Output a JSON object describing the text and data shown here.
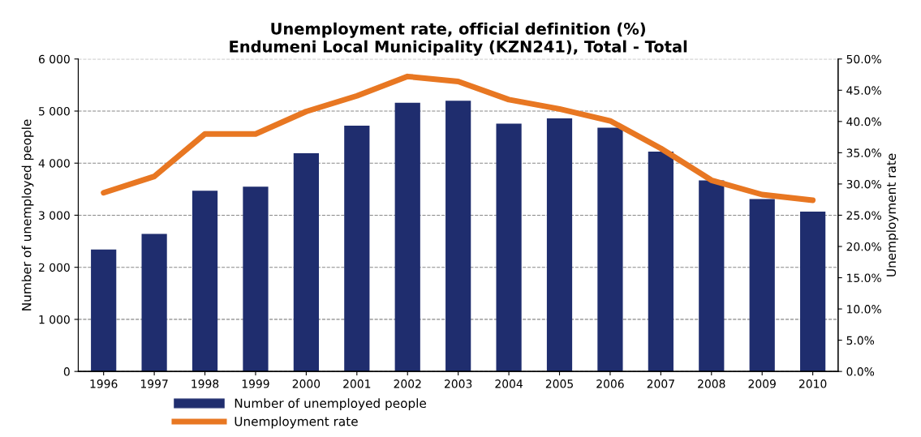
{
  "chart_data": {
    "type": "bar",
    "title": "Unemployment rate, official definition (%)\nEndumeni Local Municipality (KZN241), Total - Total",
    "categories": [
      "1996",
      "1997",
      "1998",
      "1999",
      "2000",
      "2001",
      "2002",
      "2003",
      "2004",
      "2005",
      "2006",
      "2007",
      "2008",
      "2009",
      "2010"
    ],
    "series": [
      {
        "name": "Number of unemployed people",
        "color": "#1f2d6e",
        "values": [
          2340,
          2640,
          3470,
          3550,
          4190,
          4720,
          5160,
          5200,
          4760,
          4860,
          4680,
          4220,
          3670,
          3310,
          3070
        ]
      },
      {
        "name": "Unemployment rate",
        "color": "#e87722",
        "type": "line",
        "axis": "y2",
        "values": [
          28.6,
          31.2,
          38.0,
          38.0,
          41.6,
          44.1,
          47.2,
          46.4,
          43.5,
          42.0,
          40.1,
          35.7,
          30.6,
          28.3,
          27.4
        ]
      }
    ],
    "ylabel": "Number of unemployed people",
    "y2label": "Unemployment rate",
    "ylim": [
      0,
      6000
    ],
    "yticks": [
      {
        "value": 0,
        "label": "0"
      },
      {
        "value": 1000,
        "label": "1 000"
      },
      {
        "value": 2000,
        "label": "2 000"
      },
      {
        "value": 3000,
        "label": "3 000"
      },
      {
        "value": 4000,
        "label": "4 000"
      },
      {
        "value": 5000,
        "label": "5 000"
      },
      {
        "value": 6000,
        "label": "6 000"
      }
    ],
    "y2lim": [
      0,
      50
    ],
    "y2ticks": [
      {
        "value": 0,
        "label": "0.0%"
      },
      {
        "value": 5,
        "label": "5.0%"
      },
      {
        "value": 10,
        "label": "10.0%"
      },
      {
        "value": 15,
        "label": "15.0%"
      },
      {
        "value": 20,
        "label": "20.0%"
      },
      {
        "value": 25,
        "label": "25.0%"
      },
      {
        "value": 30,
        "label": "30.0%"
      },
      {
        "value": 35,
        "label": "35.0%"
      },
      {
        "value": 40,
        "label": "40.0%"
      },
      {
        "value": 45,
        "label": "45.0%"
      },
      {
        "value": 50,
        "label": "50.0%"
      }
    ],
    "grid": "y",
    "legend": "bottom"
  }
}
